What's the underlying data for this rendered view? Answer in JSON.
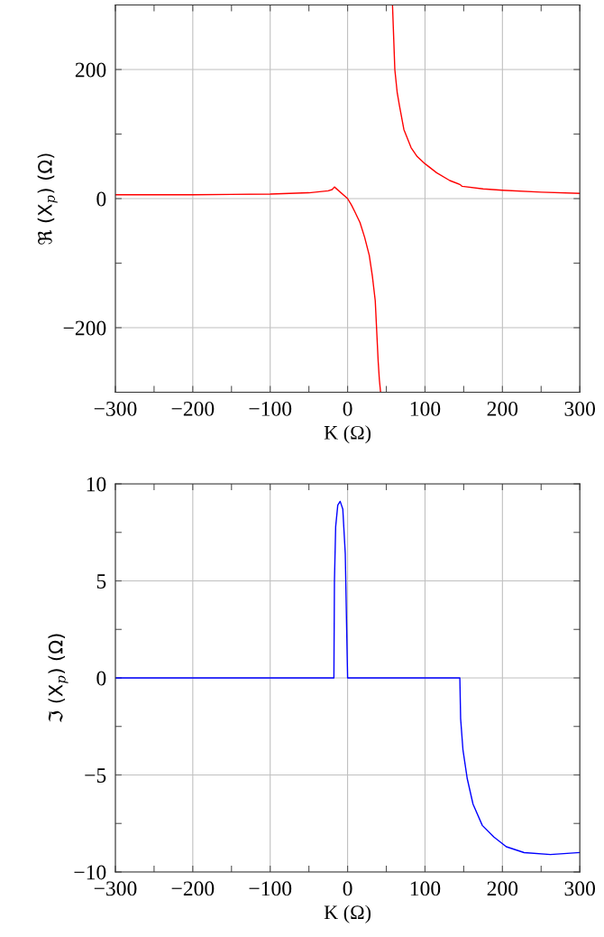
{
  "chart_data": [
    {
      "type": "line",
      "xlabel": "K (Ω)",
      "ylabel": "ℜ (X$_{p}$) (Ω)",
      "xlim": [
        -300,
        300
      ],
      "ylim": [
        -300,
        300
      ],
      "xticks": [
        -300,
        {
          "value": -250,
          "label": null
        },
        -200,
        {
          "value": -150,
          "label": null
        },
        -100,
        {
          "value": -50,
          "label": null
        },
        0,
        {
          "value": 50,
          "label": null
        },
        100,
        {
          "value": 150,
          "label": null
        },
        200,
        {
          "value": 250,
          "label": null
        },
        300
      ],
      "yticks": [
        -200,
        {
          "value": -100,
          "label": null
        },
        0,
        {
          "value": 100,
          "label": null
        },
        200
      ],
      "grid": true,
      "series": [
        {
          "color": "#ff0000",
          "x": [
            -300,
            -200,
            -100,
            -50,
            -25,
            -20,
            -17,
            0,
            5,
            10,
            16,
            22,
            28,
            32,
            35.7,
            39.5,
            41,
            42.6
          ],
          "values": [
            6,
            6,
            7,
            9,
            12,
            14,
            18,
            0,
            -10,
            -22,
            -37,
            -60,
            -88,
            -120,
            -158,
            -252,
            -280,
            -300
          ]
        },
        {
          "color": "#ff0000",
          "x": [
            58,
            61,
            64,
            67,
            72.7,
            82,
            90,
            100,
            115,
            132,
            145,
            148,
            175,
            200,
            250,
            300
          ],
          "values": [
            300,
            200,
            165,
            144,
            107,
            79,
            65,
            54,
            40,
            28,
            22,
            19,
            15,
            13,
            10,
            8
          ]
        }
      ]
    },
    {
      "type": "line",
      "xlabel": "K (Ω)",
      "ylabel": "ℑ (X$_{p}$) (Ω)",
      "xlim": [
        -300,
        300
      ],
      "ylim": [
        -10,
        10
      ],
      "xticks": [
        -300,
        {
          "value": -250,
          "label": null
        },
        -200,
        {
          "value": -150,
          "label": null
        },
        -100,
        {
          "value": -50,
          "label": null
        },
        0,
        {
          "value": 50,
          "label": null
        },
        100,
        {
          "value": 150,
          "label": null
        },
        200,
        {
          "value": 250,
          "label": null
        },
        300
      ],
      "yticks": [
        -10,
        {
          "value": -7.5,
          "label": null
        },
        -5,
        {
          "value": -2.5,
          "label": null
        },
        0,
        {
          "value": 2.5,
          "label": null
        },
        5,
        {
          "value": 7.5,
          "label": null
        },
        10
      ],
      "grid": true,
      "series": [
        {
          "color": "#0000ff",
          "x": [
            -300,
            -17.7,
            -17,
            -15.4,
            -12.7,
            -9.6,
            -6.2,
            -3,
            -1.2,
            0,
            145,
            146,
            149,
            154.6,
            162,
            174,
            189,
            205,
            228,
            262,
            300
          ],
          "values": [
            0,
            0,
            5.0,
            7.8,
            8.9,
            9.1,
            8.7,
            6.4,
            2.5,
            0,
            0,
            -2.1,
            -3.7,
            -5.2,
            -6.5,
            -7.6,
            -8.2,
            -8.7,
            -9.0,
            -9.1,
            -9.0
          ]
        }
      ]
    }
  ]
}
